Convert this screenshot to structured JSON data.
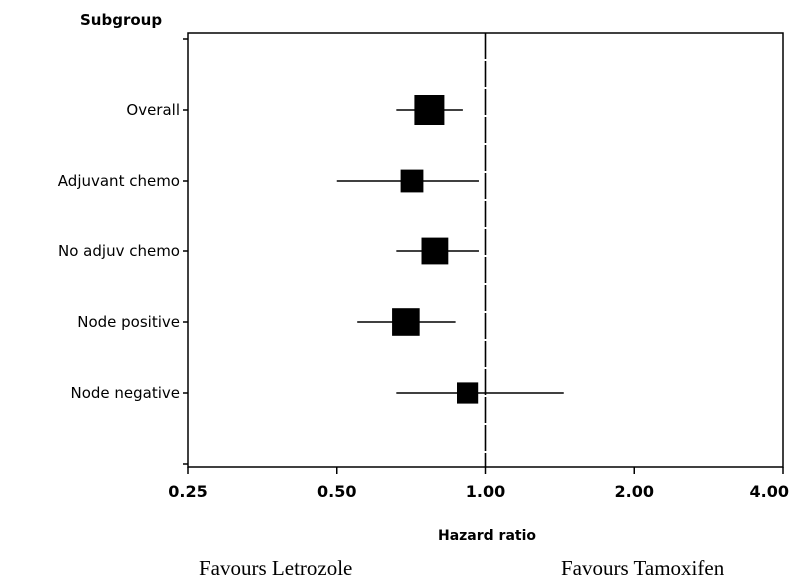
{
  "chart_data": {
    "type": "forest",
    "title": "",
    "ylabel": "Subgroup",
    "xlabel": "Hazard ratio",
    "x_scale": "log",
    "xlim": [
      0.25,
      4.0
    ],
    "x_ticks": [
      "0.25",
      "0.50",
      "1.00",
      "2.00",
      "4.00"
    ],
    "x_tick_values": [
      0.25,
      0.5,
      1.0,
      2.0,
      4.0
    ],
    "reference_line": 1.0,
    "grid": false,
    "subgroups": [
      {
        "label": "Overall",
        "hr": 0.77,
        "ci_low": 0.66,
        "ci_high": 0.9,
        "weight": 1.0
      },
      {
        "label": "Adjuvant chemo",
        "hr": 0.71,
        "ci_low": 0.5,
        "ci_high": 0.97,
        "weight": 0.55
      },
      {
        "label": "No adjuv chemo",
        "hr": 0.79,
        "ci_low": 0.66,
        "ci_high": 0.97,
        "weight": 0.8
      },
      {
        "label": "Node positive",
        "hr": 0.69,
        "ci_low": 0.55,
        "ci_high": 0.87,
        "weight": 0.85
      },
      {
        "label": "Node negative",
        "hr": 0.92,
        "ci_low": 0.66,
        "ci_high": 1.44,
        "weight": 0.45
      }
    ]
  },
  "footer": {
    "left": "Favours Letrozole",
    "right": "Favours Tamoxifen"
  }
}
